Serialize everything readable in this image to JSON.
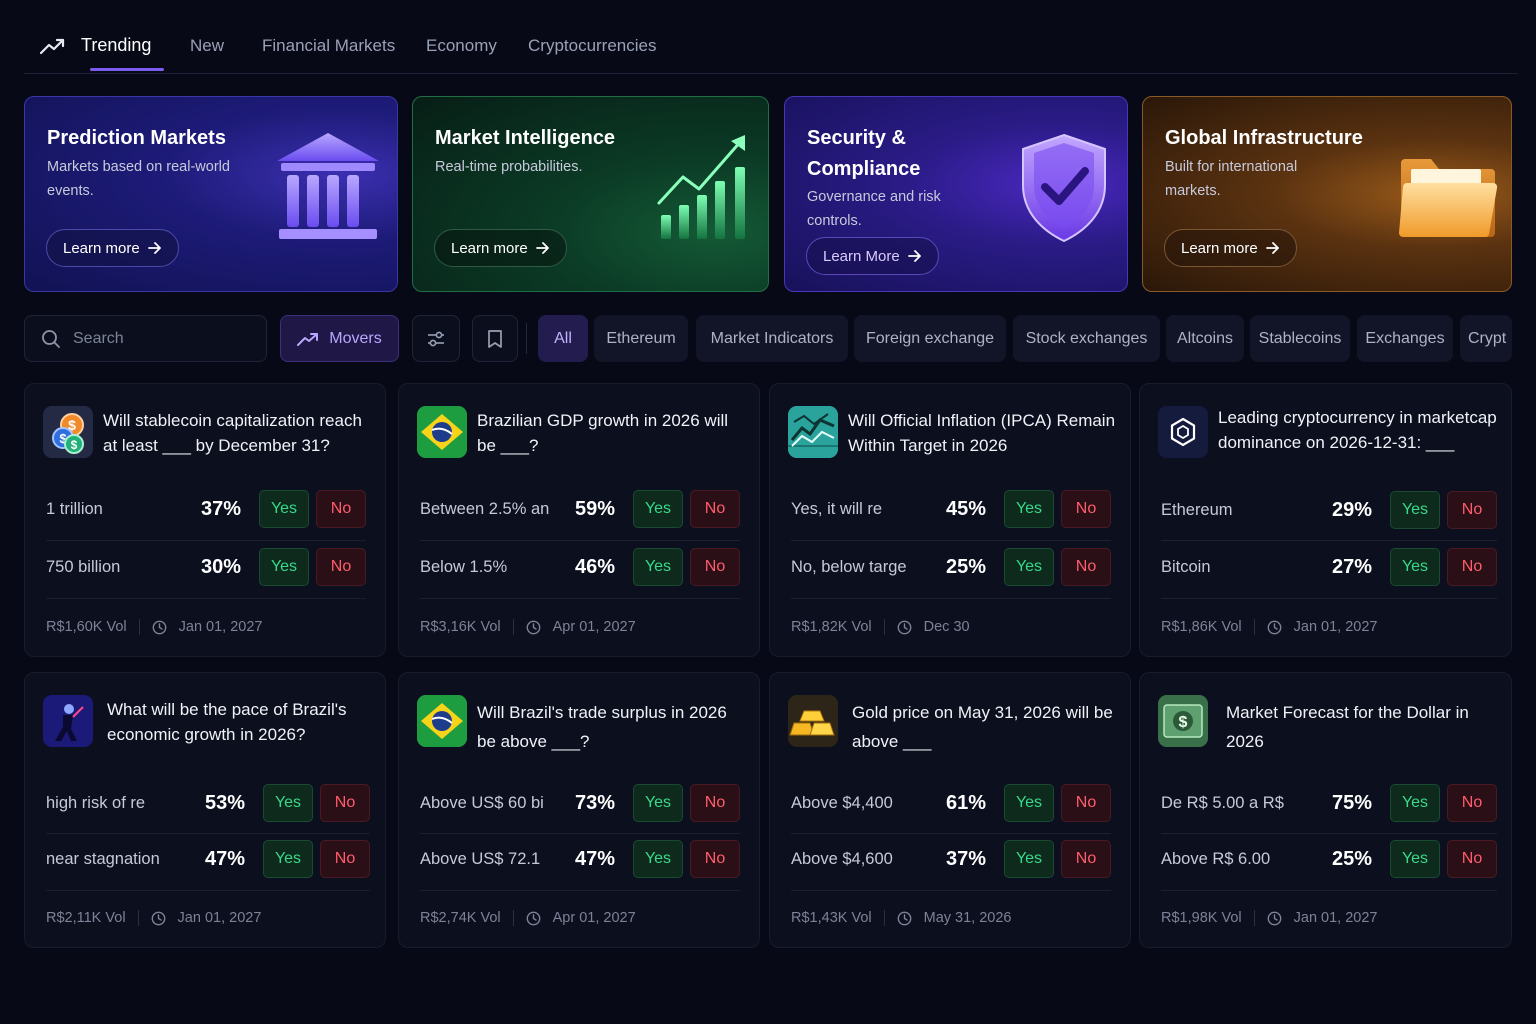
{
  "nav": {
    "tabs": [
      {
        "label": "Trending",
        "icon": "trending-icon",
        "active": true
      },
      {
        "label": "New"
      },
      {
        "label": "Financial Markets"
      },
      {
        "label": "Economy"
      },
      {
        "label": "Cryptocurrencies"
      }
    ]
  },
  "hero": [
    {
      "title": "Prediction Markets",
      "subtitle_1": "Markets based on real-world",
      "subtitle_2": "events.",
      "button": "Learn more",
      "icon": "bank-icon"
    },
    {
      "title": "Market Intelligence",
      "subtitle_1": "Real-time probabilities.",
      "button": "Learn more",
      "icon": "growth-chart-icon"
    },
    {
      "title_1": "Security &",
      "title_2": "Compliance",
      "subtitle_1": "Governance and risk",
      "subtitle_2": "controls.",
      "button": "Learn More",
      "icon": "shield-check-icon"
    },
    {
      "title": "Global Infrastructure",
      "subtitle_1": "Built for international",
      "subtitle_2": "markets.",
      "button": "Learn more",
      "icon": "folder-icon"
    }
  ],
  "filters": {
    "search_placeholder": "Search",
    "movers": "Movers",
    "chips": [
      "All",
      "Ethereum",
      "Market Indicators",
      "Foreign exchange",
      "Stock exchanges",
      "Altcoins",
      "Stablecoins",
      "Exchanges",
      "Crypt"
    ]
  },
  "common": {
    "yes": "Yes",
    "no": "No"
  },
  "markets": [
    {
      "title": "Will stablecoin capitalization reach at least ___ by December 31?",
      "icon": "coins-icon",
      "outcomes": [
        {
          "label": "1 trillion",
          "pct": "37%"
        },
        {
          "label": "750 billion",
          "pct": "30%"
        }
      ],
      "volume": "R$1,60K Vol",
      "date": "Jan 01, 2027"
    },
    {
      "title": "Brazilian GDP growth in 2026 will be ___?",
      "icon": "brazil-flag-icon",
      "outcomes": [
        {
          "label": "Between 2.5% an",
          "pct": "59%"
        },
        {
          "label": "Below 1.5%",
          "pct": "46%"
        }
      ],
      "volume": "R$3,16K Vol",
      "date": "Apr 01, 2027"
    },
    {
      "title": "Will Official Inflation (IPCA) Remain Within Target in 2026",
      "icon": "inflation-chart-icon",
      "outcomes": [
        {
          "label": "Yes, it will re",
          "pct": "45%"
        },
        {
          "label": "No, below targe",
          "pct": "25%"
        }
      ],
      "volume": "R$1,82K Vol",
      "date": "Dec 30"
    },
    {
      "title": "Leading cryptocurrency in marketcap dominance on 2026-12-31: ___",
      "icon": "hexagon-crypto-icon",
      "outcomes": [
        {
          "label": "Ethereum",
          "pct": "29%"
        },
        {
          "label": "Bitcoin",
          "pct": "27%"
        }
      ],
      "volume": "R$1,86K Vol",
      "date": "Jan 01, 2027"
    },
    {
      "title": "What will be the pace of Brazil's economic growth in 2026?",
      "icon": "economy-figure-icon",
      "outcomes": [
        {
          "label": "high risk of re",
          "pct": "53%"
        },
        {
          "label": "near stagnation",
          "pct": "47%"
        }
      ],
      "volume": "R$2,11K Vol",
      "date": "Jan 01, 2027"
    },
    {
      "title": "Will Brazil's trade surplus in 2026 be above ___?",
      "icon": "brazil-flag-icon",
      "outcomes": [
        {
          "label": "Above US$ 60 bi",
          "pct": "73%"
        },
        {
          "label": "Above US$ 72.1",
          "pct": "47%"
        }
      ],
      "volume": "R$2,74K Vol",
      "date": "Apr 01, 2027"
    },
    {
      "title": "Gold price on May 31, 2026 will be above ___",
      "icon": "gold-bars-icon",
      "outcomes": [
        {
          "label": "Above $4,400",
          "pct": "61%"
        },
        {
          "label": "Above $4,600",
          "pct": "37%"
        }
      ],
      "volume": "R$1,43K Vol",
      "date": "May 31, 2026"
    },
    {
      "title": "Market Forecast for the Dollar in 2026",
      "icon": "dollar-bill-icon",
      "outcomes": [
        {
          "label": "De R$ 5.00 a R$",
          "pct": "75%"
        },
        {
          "label": "Above R$ 6.00",
          "pct": "25%"
        }
      ],
      "volume": "R$1,98K Vol",
      "date": "Jan 01, 2027"
    }
  ],
  "colors": {
    "accent": "#7c5cf0",
    "yes": "#38d98a",
    "no": "#ff5c6c",
    "background": "#070a16"
  }
}
